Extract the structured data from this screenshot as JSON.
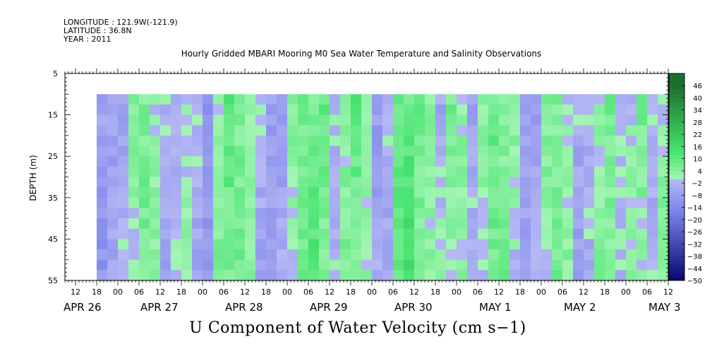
{
  "meta": {
    "longitude": "LONGITUDE : 121.9W(-121.9)",
    "latitude": "LATITUDE : 36.8N",
    "year": "YEAR : 2011"
  },
  "chart_data": {
    "type": "heatmap",
    "title": "Hourly Gridded MBARI Mooring M0 Sea Water Temperature and Salinity Observations",
    "xlabel_title": "U Component of Water Velocity (cm s−1)",
    "ylabel": "DEPTH (m)",
    "y_ticks": [
      "5",
      "15",
      "25",
      "35",
      "45",
      "55"
    ],
    "y_range": [
      5,
      55
    ],
    "data_depth_range": [
      10,
      55
    ],
    "x_hour_ticks": [
      "12",
      "18",
      "00",
      "06",
      "12",
      "18",
      "00",
      "06",
      "12",
      "18",
      "00",
      "06",
      "12",
      "18",
      "00",
      "06",
      "12",
      "18",
      "00",
      "06",
      "12",
      "18",
      "00",
      "06",
      "12",
      "18",
      "00",
      "06",
      "12",
      "18",
      "00",
      "06"
    ],
    "x_day_labels": [
      "APR 26",
      "APR 27",
      "APR 28",
      "APR 29",
      "APR 30",
      "MAY  1",
      "MAY  2",
      "MAY  3"
    ],
    "time_range": [
      "2011-04-26 09:00",
      "2011-05-03 12:00"
    ],
    "data_start": "2011-04-26 18:00",
    "colorbar_levels": [
      "46",
      "40",
      "34",
      "28",
      "22",
      "16",
      "10",
      "4",
      "−2",
      "−8",
      "−14",
      "−20",
      "−26",
      "−32",
      "−38",
      "−44",
      "−50"
    ],
    "colorbar_range": [
      -50,
      52
    ],
    "columns": [
      {
        "t": "2011-04-26 18:00",
        "u": -8
      },
      {
        "t": "2011-04-26 21:00",
        "u": -6
      },
      {
        "t": "2011-04-27 00:00",
        "u": -4
      },
      {
        "t": "2011-04-27 03:00",
        "u": 2
      },
      {
        "t": "2011-04-27 06:00",
        "u": 6
      },
      {
        "t": "2011-04-27 09:00",
        "u": 3
      },
      {
        "t": "2011-04-27 12:00",
        "u": -5
      },
      {
        "t": "2011-04-27 15:00",
        "u": -2
      },
      {
        "t": "2011-04-27 18:00",
        "u": 1
      },
      {
        "t": "2011-04-27 21:00",
        "u": -4
      },
      {
        "t": "2011-04-28 00:00",
        "u": -10
      },
      {
        "t": "2011-04-28 03:00",
        "u": 4
      },
      {
        "t": "2011-04-28 06:00",
        "u": 8
      },
      {
        "t": "2011-04-28 09:00",
        "u": 6
      },
      {
        "t": "2011-04-28 12:00",
        "u": 3
      },
      {
        "t": "2011-04-28 15:00",
        "u": -4
      },
      {
        "t": "2011-04-28 18:00",
        "u": -8
      },
      {
        "t": "2011-04-28 21:00",
        "u": -6
      },
      {
        "t": "2011-04-29 00:00",
        "u": 2
      },
      {
        "t": "2011-04-29 03:00",
        "u": 6
      },
      {
        "t": "2011-04-29 06:00",
        "u": 10
      },
      {
        "t": "2011-04-29 09:00",
        "u": 7
      },
      {
        "t": "2011-04-29 12:00",
        "u": -2
      },
      {
        "t": "2011-04-29 15:00",
        "u": 4
      },
      {
        "t": "2011-04-29 18:00",
        "u": 8
      },
      {
        "t": "2011-04-29 21:00",
        "u": 2
      },
      {
        "t": "2011-04-30 00:00",
        "u": -6
      },
      {
        "t": "2011-04-30 03:00",
        "u": -4
      },
      {
        "t": "2011-04-30 06:00",
        "u": 10
      },
      {
        "t": "2011-04-30 09:00",
        "u": 12
      },
      {
        "t": "2011-04-30 12:00",
        "u": 6
      },
      {
        "t": "2011-04-30 15:00",
        "u": 3
      },
      {
        "t": "2011-04-30 18:00",
        "u": -2
      },
      {
        "t": "2011-04-30 21:00",
        "u": 4
      },
      {
        "t": "2011-05-01 00:00",
        "u": 3
      },
      {
        "t": "2011-05-01 03:00",
        "u": -4
      },
      {
        "t": "2011-05-01 06:00",
        "u": 2
      },
      {
        "t": "2011-05-01 09:00",
        "u": 8
      },
      {
        "t": "2011-05-01 12:00",
        "u": 6
      },
      {
        "t": "2011-05-01 15:00",
        "u": 1
      },
      {
        "t": "2011-05-01 18:00",
        "u": -6
      },
      {
        "t": "2011-05-01 21:00",
        "u": -4
      },
      {
        "t": "2011-05-02 00:00",
        "u": 3
      },
      {
        "t": "2011-05-02 03:00",
        "u": 6
      },
      {
        "t": "2011-05-02 06:00",
        "u": 2
      },
      {
        "t": "2011-05-02 09:00",
        "u": -6
      },
      {
        "t": "2011-05-02 12:00",
        "u": -3
      },
      {
        "t": "2011-05-02 15:00",
        "u": 4
      },
      {
        "t": "2011-05-02 18:00",
        "u": 5
      },
      {
        "t": "2011-05-02 21:00",
        "u": -2
      },
      {
        "t": "2011-05-03 00:00",
        "u": 2
      },
      {
        "t": "2011-05-03 03:00",
        "u": 4
      },
      {
        "t": "2011-05-03 06:00",
        "u": -3
      },
      {
        "t": "2011-05-03 09:00",
        "u": 3
      }
    ],
    "colors": {
      "positive_light": "#a4f5b4",
      "positive_mid": "#46e36e",
      "positive_dark": "#1b6f2f",
      "negative_light": "#b6b9f4",
      "negative_mid": "#7f86ec",
      "negative_dark": "#06066e"
    }
  }
}
